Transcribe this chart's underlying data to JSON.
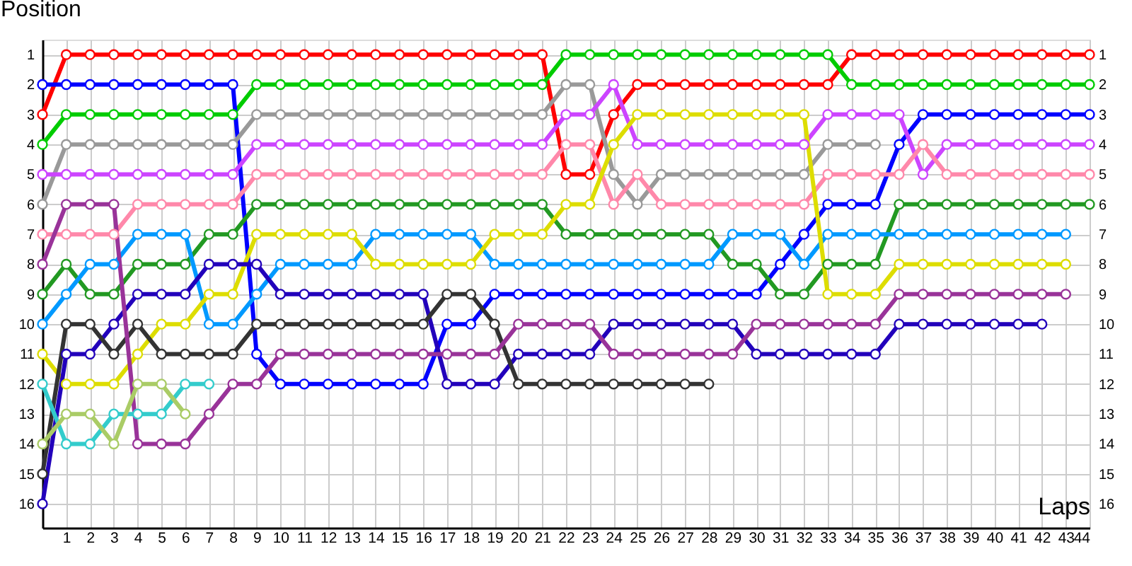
{
  "chart_data": {
    "type": "line",
    "ylabel": "Position",
    "xlabel": "Laps",
    "x": [
      0,
      1,
      2,
      3,
      4,
      5,
      6,
      7,
      8,
      9,
      10,
      11,
      12,
      13,
      14,
      15,
      16,
      17,
      18,
      19,
      20,
      21,
      22,
      23,
      24,
      25,
      26,
      27,
      28,
      29,
      30,
      31,
      32,
      33,
      34,
      35,
      36,
      37,
      38,
      39,
      40,
      41,
      42,
      43,
      44
    ],
    "xlim": [
      0,
      44
    ],
    "xticks": [
      1,
      2,
      3,
      4,
      5,
      6,
      7,
      8,
      9,
      10,
      11,
      12,
      13,
      14,
      15,
      16,
      17,
      18,
      19,
      20,
      21,
      22,
      23,
      24,
      25,
      26,
      27,
      28,
      29,
      30,
      31,
      32,
      33,
      34,
      35,
      36,
      37,
      38,
      39,
      40,
      41,
      42,
      43,
      44
    ],
    "ylim": [
      16.8,
      0.5
    ],
    "yticks": [
      1,
      2,
      3,
      4,
      5,
      6,
      7,
      8,
      9,
      10,
      11,
      12,
      13,
      14,
      15,
      16
    ],
    "y2lim": [
      16.8,
      0.5
    ],
    "y2ticks": [
      1,
      2,
      3,
      4,
      5,
      6,
      7,
      8,
      9,
      10,
      11,
      12,
      13,
      14,
      15,
      16
    ],
    "grid": true,
    "marker": "circle",
    "line_style": "solid",
    "series": [
      {
        "color": "#ff0000",
        "values": [
          3,
          1,
          1,
          1,
          1,
          1,
          1,
          1,
          1,
          1,
          1,
          1,
          1,
          1,
          1,
          1,
          1,
          1,
          1,
          1,
          1,
          1,
          5,
          5,
          3,
          2,
          2,
          2,
          2,
          2,
          2,
          2,
          2,
          2,
          1,
          1,
          1,
          1,
          1,
          1,
          1,
          1,
          1,
          1,
          1
        ]
      },
      {
        "color": "#00cc00",
        "values": [
          4,
          3,
          3,
          3,
          3,
          3,
          3,
          3,
          3,
          2,
          2,
          2,
          2,
          2,
          2,
          2,
          2,
          2,
          2,
          2,
          2,
          2,
          1,
          1,
          1,
          1,
          1,
          1,
          1,
          1,
          1,
          1,
          1,
          1,
          2,
          2,
          2,
          2,
          2,
          2,
          2,
          2,
          2,
          2,
          2
        ]
      },
      {
        "color": "#0000ff",
        "values": [
          2,
          2,
          2,
          2,
          2,
          2,
          2,
          2,
          2,
          11,
          12,
          12,
          12,
          12,
          12,
          12,
          12,
          10,
          10,
          9,
          9,
          9,
          9,
          9,
          9,
          9,
          9,
          9,
          9,
          9,
          9,
          8,
          7,
          6,
          6,
          6,
          4,
          3,
          3,
          3,
          3,
          3,
          3,
          3,
          3
        ]
      },
      {
        "color": "#999999",
        "values": [
          6,
          4,
          4,
          4,
          4,
          4,
          4,
          4,
          4,
          3,
          3,
          3,
          3,
          3,
          3,
          3,
          3,
          3,
          3,
          3,
          3,
          3,
          2,
          2,
          5,
          6,
          5,
          5,
          5,
          5,
          5,
          5,
          5,
          4,
          4,
          4,
          null,
          null,
          null,
          null,
          null,
          null,
          null,
          null,
          null
        ]
      },
      {
        "color": "#cc44ff",
        "values": [
          5,
          5,
          5,
          5,
          5,
          5,
          5,
          5,
          5,
          4,
          4,
          4,
          4,
          4,
          4,
          4,
          4,
          4,
          4,
          4,
          4,
          4,
          3,
          3,
          2,
          4,
          4,
          4,
          4,
          4,
          4,
          4,
          4,
          3,
          3,
          3,
          3,
          5,
          4,
          4,
          4,
          4,
          4,
          4,
          4
        ]
      },
      {
        "color": "#ff88aa",
        "values": [
          7,
          7,
          7,
          7,
          6,
          6,
          6,
          6,
          6,
          5,
          5,
          5,
          5,
          5,
          5,
          5,
          5,
          5,
          5,
          5,
          5,
          5,
          4,
          4,
          6,
          5,
          6,
          6,
          6,
          6,
          6,
          6,
          6,
          5,
          5,
          5,
          5,
          4,
          5,
          5,
          5,
          5,
          5,
          5,
          5
        ]
      },
      {
        "color": "#229922",
        "values": [
          9,
          8,
          9,
          9,
          8,
          8,
          8,
          7,
          7,
          6,
          6,
          6,
          6,
          6,
          6,
          6,
          6,
          6,
          6,
          6,
          6,
          6,
          7,
          7,
          7,
          7,
          7,
          7,
          7,
          8,
          8,
          9,
          9,
          8,
          8,
          8,
          6,
          6,
          6,
          6,
          6,
          6,
          6,
          6,
          6
        ]
      },
      {
        "color": "#0099ff",
        "values": [
          10,
          9,
          8,
          8,
          7,
          7,
          7,
          10,
          10,
          9,
          8,
          8,
          8,
          8,
          7,
          7,
          7,
          7,
          7,
          8,
          8,
          8,
          8,
          8,
          8,
          8,
          8,
          8,
          8,
          7,
          7,
          7,
          8,
          7,
          7,
          7,
          7,
          7,
          7,
          7,
          7,
          7,
          7,
          7,
          null
        ]
      },
      {
        "color": "#dddd00",
        "values": [
          11,
          12,
          12,
          12,
          11,
          10,
          10,
          9,
          9,
          7,
          7,
          7,
          7,
          7,
          8,
          8,
          8,
          8,
          8,
          7,
          7,
          7,
          6,
          6,
          4,
          3,
          3,
          3,
          3,
          3,
          3,
          3,
          3,
          9,
          9,
          9,
          8,
          8,
          8,
          8,
          8,
          8,
          8,
          8,
          null
        ]
      },
      {
        "color": "#2200bb",
        "values": [
          16,
          11,
          11,
          10,
          9,
          9,
          9,
          8,
          8,
          8,
          9,
          9,
          9,
          9,
          9,
          9,
          9,
          12,
          12,
          12,
          11,
          11,
          11,
          11,
          10,
          10,
          10,
          10,
          10,
          10,
          11,
          11,
          11,
          11,
          11,
          11,
          10,
          10,
          10,
          10,
          10,
          10,
          10,
          null,
          null
        ]
      },
      {
        "color": "#333333",
        "values": [
          15,
          10,
          10,
          11,
          10,
          11,
          11,
          11,
          11,
          10,
          10,
          10,
          10,
          10,
          10,
          10,
          10,
          9,
          9,
          10,
          12,
          12,
          12,
          12,
          12,
          12,
          12,
          12,
          12,
          null,
          null,
          null,
          null,
          null,
          null,
          null,
          null,
          null,
          null,
          null,
          null,
          null,
          null,
          null,
          null
        ]
      },
      {
        "color": "#993399",
        "values": [
          8,
          6,
          6,
          6,
          14,
          14,
          14,
          13,
          12,
          12,
          11,
          11,
          11,
          11,
          11,
          11,
          11,
          11,
          11,
          11,
          10,
          10,
          10,
          10,
          11,
          11,
          11,
          11,
          11,
          11,
          10,
          10,
          10,
          10,
          10,
          10,
          9,
          9,
          9,
          9,
          9,
          9,
          9,
          9,
          null
        ]
      },
      {
        "color": "#33cccc",
        "values": [
          12,
          14,
          14,
          13,
          13,
          13,
          12,
          12,
          null,
          null,
          null,
          null,
          null,
          null,
          null,
          null,
          null,
          null,
          null,
          null,
          null,
          null,
          null,
          null,
          null,
          null,
          null,
          null,
          null,
          null,
          null,
          null,
          null,
          null,
          null,
          null,
          null,
          null,
          null,
          null,
          null,
          null,
          null,
          null,
          null
        ]
      },
      {
        "color": "#aacc66",
        "values": [
          14,
          13,
          13,
          14,
          12,
          12,
          13,
          null,
          null,
          null,
          null,
          null,
          null,
          null,
          null,
          null,
          null,
          null,
          null,
          null,
          null,
          null,
          null,
          null,
          null,
          null,
          null,
          null,
          null,
          null,
          null,
          null,
          null,
          null,
          null,
          null,
          null,
          null,
          null,
          null,
          null,
          null,
          null,
          null,
          null
        ]
      }
    ]
  }
}
